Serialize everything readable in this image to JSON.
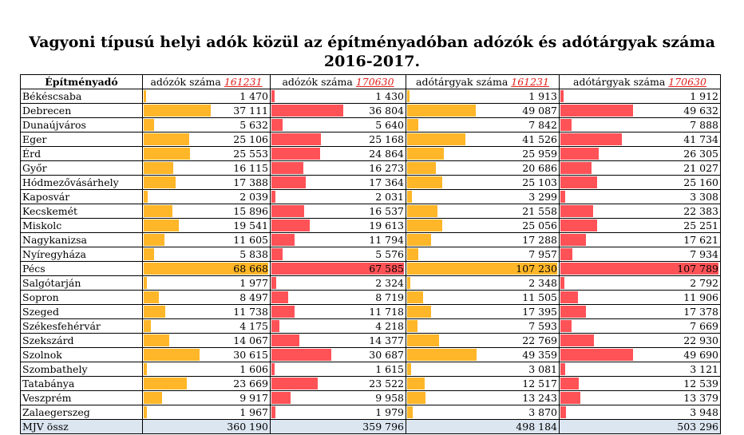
{
  "title_line1": "Vagyoni típusú helyi adók közül az építményadóban adózók és adótárgyak száma",
  "title_line2": "2016-2017.",
  "headers": {
    "city": "Építményadó",
    "cols": [
      {
        "label": "adózók száma ",
        "code": "161231"
      },
      {
        "label": "adózók száma ",
        "code": "170630"
      },
      {
        "label": "adótárgyak száma ",
        "code": "161231"
      },
      {
        "label": "adótárgyak száma ",
        "code": "170630"
      }
    ]
  },
  "rows": [
    {
      "city": "Békéscsaba",
      "v": [
        "1 470",
        "1 430",
        "1 913",
        "1 912"
      ]
    },
    {
      "city": "Debrecen",
      "v": [
        "37 111",
        "36 804",
        "49 087",
        "49 632"
      ]
    },
    {
      "city": "Dunaújváros",
      "v": [
        "5 632",
        "5 640",
        "7 842",
        "7 888"
      ]
    },
    {
      "city": "Eger",
      "v": [
        "25 106",
        "25 168",
        "41 526",
        "41 734"
      ]
    },
    {
      "city": "Érd",
      "v": [
        "25 553",
        "24 864",
        "25 959",
        "26 305"
      ]
    },
    {
      "city": "Győr",
      "v": [
        "16 115",
        "16 273",
        "20 686",
        "21 027"
      ]
    },
    {
      "city": "Hódmezővásárhely",
      "v": [
        "17 388",
        "17 364",
        "25 103",
        "25 160"
      ]
    },
    {
      "city": "Kaposvár",
      "v": [
        "2 039",
        "2 031",
        "3 299",
        "3 308"
      ]
    },
    {
      "city": "Kecskemét",
      "v": [
        "15 896",
        "16 537",
        "21 558",
        "22 383"
      ]
    },
    {
      "city": "Miskolc",
      "v": [
        "19 541",
        "19 613",
        "25 056",
        "25 251"
      ]
    },
    {
      "city": "Nagykanizsa",
      "v": [
        "11 605",
        "11 794",
        "17 288",
        "17 621"
      ]
    },
    {
      "city": "Nyíregyháza",
      "v": [
        "5 838",
        "5 576",
        "7 957",
        "7 934"
      ]
    },
    {
      "city": "Pécs",
      "v": [
        "68 668",
        "67 585",
        "107 230",
        "107 789"
      ]
    },
    {
      "city": "Salgótarján",
      "v": [
        "1 977",
        "2 324",
        "2 348",
        "2 792"
      ]
    },
    {
      "city": "Sopron",
      "v": [
        "8 497",
        "8 719",
        "11 505",
        "11 906"
      ]
    },
    {
      "city": "Szeged",
      "v": [
        "11 738",
        "11 718",
        "17 395",
        "17 378"
      ]
    },
    {
      "city": "Székesfehérvár",
      "v": [
        "4 175",
        "4 218",
        "7 593",
        "7 669"
      ]
    },
    {
      "city": "Szekszárd",
      "v": [
        "14 067",
        "14 377",
        "22 769",
        "22 930"
      ]
    },
    {
      "city": "Szolnok",
      "v": [
        "30 615",
        "30 687",
        "49 359",
        "49 690"
      ]
    },
    {
      "city": "Szombathely",
      "v": [
        "1 606",
        "1 615",
        "3 081",
        "3 121"
      ]
    },
    {
      "city": "Tatabánya",
      "v": [
        "23 669",
        "23 522",
        "12 517",
        "12 539"
      ]
    },
    {
      "city": "Veszprém",
      "v": [
        "9 917",
        "9 958",
        "13 243",
        "13 379"
      ]
    },
    {
      "city": "Zalaegerszeg",
      "v": [
        "1 967",
        "1 979",
        "3 870",
        "3 948"
      ]
    }
  ],
  "total": {
    "city": "MJV össz",
    "v": [
      "360 190",
      "359 796",
      "498 184",
      "503 296"
    ]
  },
  "colors": {
    "orange": "#FFB628",
    "red": "#FF5257",
    "total_bg": "#DCE6F1",
    "code": "#E0201C"
  }
}
